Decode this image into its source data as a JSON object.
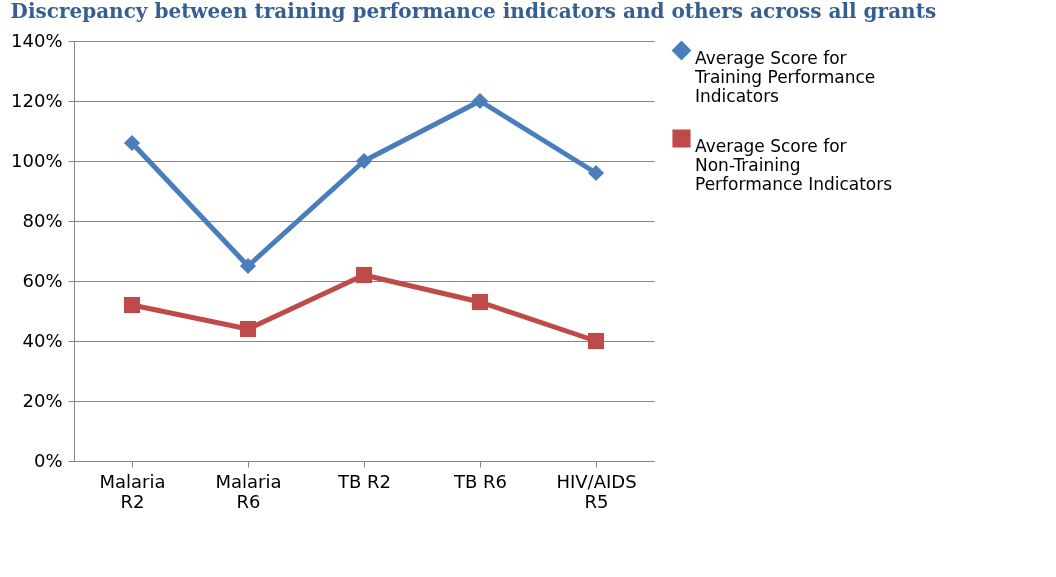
{
  "chart_data": {
    "type": "line",
    "title": "Discrepancy between training performance indicators and others across all grants",
    "categories": [
      "Malaria R2",
      "Malaria R6",
      "TB R2",
      "TB R6",
      "HIV/AIDS R5"
    ],
    "series": [
      {
        "name": "Average Score for Training  Performance Indicators",
        "color": "#4a7ebb",
        "marker": "diamond",
        "values": [
          106,
          65,
          100,
          120,
          96
        ]
      },
      {
        "name": "Average Score for Non-Training Performance Indicators",
        "color": "#be4b48",
        "marker": "square",
        "values": [
          52,
          44,
          62,
          53,
          40
        ]
      }
    ],
    "ylim": [
      0,
      140
    ],
    "yticks": [
      {
        "value": 0,
        "label": "0%"
      },
      {
        "value": 20,
        "label": "20%"
      },
      {
        "value": 40,
        "label": "40%"
      },
      {
        "value": 60,
        "label": "60%"
      },
      {
        "value": 80,
        "label": "80%"
      },
      {
        "value": 100,
        "label": "100%"
      },
      {
        "value": 120,
        "label": "120%"
      },
      {
        "value": 140,
        "label": "140%"
      }
    ],
    "grid": "y",
    "legend": "right",
    "line_style": "solid"
  }
}
